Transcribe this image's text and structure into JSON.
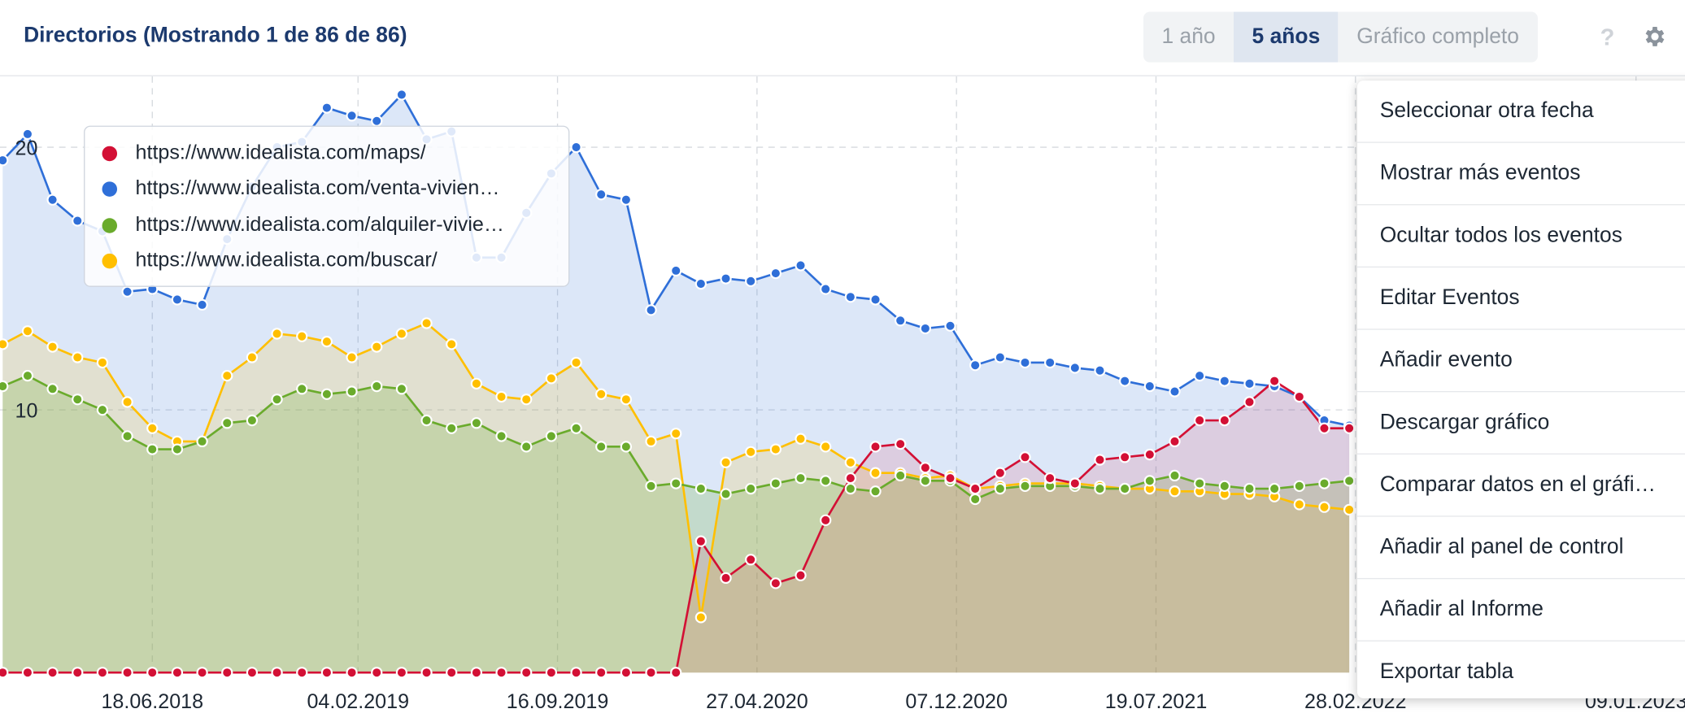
{
  "header": {
    "title": "Directorios (Mostrando 1 de 86 de 86)",
    "range_buttons": [
      "1 año",
      "5 años",
      "Gráfico completo"
    ],
    "active_button": 1,
    "help": "?"
  },
  "menu": {
    "items": [
      "Seleccionar otra fecha",
      "Mostrar más eventos",
      "Ocultar todos los eventos",
      "Editar Eventos",
      "Añadir evento",
      "Descargar gráfico",
      "Comparar datos en el gráfi…",
      "Añadir al panel de control",
      "Añadir al Informe",
      "Exportar tabla"
    ]
  },
  "chart_data": {
    "type": "area",
    "grid": true,
    "legend": "top-left",
    "x": [
      "01.01.2018",
      "29.01.2018",
      "26.02.2018",
      "26.03.2018",
      "23.04.2018",
      "21.05.2018",
      "18.06.2018",
      "16.07.2018",
      "13.08.2018",
      "10.09.2018",
      "08.10.2018",
      "05.11.2018",
      "03.12.2018",
      "31.12.2018",
      "28.01.2019",
      "25.02.2019",
      "25.03.2019",
      "22.04.2019",
      "20.05.2019",
      "17.06.2019",
      "15.07.2019",
      "12.08.2019",
      "09.09.2019",
      "07.10.2019",
      "04.11.2019",
      "02.12.2019",
      "30.12.2019",
      "27.01.2020",
      "24.02.2020",
      "23.03.2020",
      "20.04.2020",
      "18.05.2020",
      "15.06.2020",
      "13.07.2020",
      "10.08.2020",
      "07.09.2020",
      "05.10.2020",
      "02.11.2020",
      "30.11.2020",
      "28.12.2020",
      "25.01.2021",
      "22.02.2021",
      "22.03.2021",
      "19.04.2021",
      "17.05.2021",
      "14.06.2021",
      "12.07.2021",
      "09.08.2021",
      "06.09.2021",
      "04.10.2021",
      "01.11.2021",
      "29.11.2021",
      "27.12.2021",
      "24.01.2022",
      "21.02.2022"
    ],
    "xlim": [
      "29.12.2017",
      "05.03.2023"
    ],
    "xticks": [
      "18.06.2018",
      "04.02.2019",
      "16.09.2019",
      "27.04.2020",
      "07.12.2020",
      "19.07.2021",
      "28.02.2022",
      "09.01.2023"
    ],
    "ylim": [
      0,
      22.7
    ],
    "yticks": [
      10,
      20
    ],
    "series": [
      {
        "name": "https://www.idealista.com/maps/",
        "color": "#d31035",
        "values": [
          0,
          0,
          0,
          0,
          0,
          0,
          0,
          0,
          0,
          0,
          0,
          0,
          0,
          0,
          0,
          0,
          0,
          0,
          0,
          0,
          0,
          0,
          0,
          0,
          0,
          0,
          0,
          0,
          5.0,
          3.6,
          4.3,
          3.4,
          3.7,
          5.8,
          7.4,
          8.6,
          8.7,
          7.8,
          7.4,
          7.0,
          7.6,
          8.2,
          7.4,
          7.2,
          8.1,
          8.2,
          8.3,
          8.8,
          9.6,
          9.6,
          10.3,
          11.1,
          10.5,
          9.3,
          9.3
        ]
      },
      {
        "name": "https://www.idealista.com/venta-vivien…",
        "color": "#2f6fd8",
        "values": [
          19.5,
          20.5,
          18.0,
          17.2,
          16.8,
          14.5,
          14.6,
          14.2,
          14.0,
          16.5,
          18.5,
          20.0,
          20.2,
          21.5,
          21.2,
          21.0,
          22.0,
          20.3,
          20.6,
          15.8,
          15.8,
          17.5,
          19.0,
          20.0,
          18.2,
          18.0,
          13.8,
          15.3,
          14.8,
          15.0,
          14.9,
          15.2,
          15.5,
          14.6,
          14.3,
          14.2,
          13.4,
          13.1,
          13.2,
          11.7,
          12.0,
          11.8,
          11.8,
          11.6,
          11.5,
          11.1,
          10.9,
          10.7,
          11.3,
          11.1,
          11.0,
          10.9,
          10.5,
          9.6,
          9.4
        ]
      },
      {
        "name": "https://www.idealista.com/alquiler-vivie…",
        "color": "#6aab2c",
        "values": [
          10.9,
          11.3,
          10.8,
          10.4,
          10.0,
          9.0,
          8.5,
          8.5,
          8.8,
          9.5,
          9.6,
          10.4,
          10.8,
          10.6,
          10.7,
          10.9,
          10.8,
          9.6,
          9.3,
          9.5,
          9.0,
          8.6,
          9.0,
          9.3,
          8.6,
          8.6,
          7.1,
          7.2,
          7.0,
          6.8,
          7.0,
          7.2,
          7.4,
          7.3,
          7.0,
          6.9,
          7.5,
          7.3,
          7.3,
          6.6,
          7.0,
          7.1,
          7.1,
          7.1,
          7.0,
          7.0,
          7.3,
          7.5,
          7.2,
          7.1,
          7.0,
          7.0,
          7.1,
          7.2,
          7.3
        ]
      },
      {
        "name": "https://www.idealista.com/buscar/",
        "color": "#ffbf00",
        "values": [
          12.5,
          13.0,
          12.4,
          12.0,
          11.8,
          10.3,
          9.3,
          8.8,
          8.8,
          11.3,
          12.0,
          12.9,
          12.8,
          12.6,
          12.0,
          12.4,
          12.9,
          13.3,
          12.5,
          11.0,
          10.5,
          10.4,
          11.2,
          11.8,
          10.6,
          10.4,
          8.8,
          9.1,
          2.1,
          8.0,
          8.4,
          8.5,
          8.9,
          8.6,
          8.0,
          7.6,
          7.6,
          7.4,
          7.5,
          7.0,
          7.1,
          7.2,
          7.2,
          7.2,
          7.1,
          7.0,
          7.0,
          6.9,
          6.9,
          6.8,
          6.8,
          6.7,
          6.4,
          6.3,
          6.2
        ]
      }
    ]
  }
}
